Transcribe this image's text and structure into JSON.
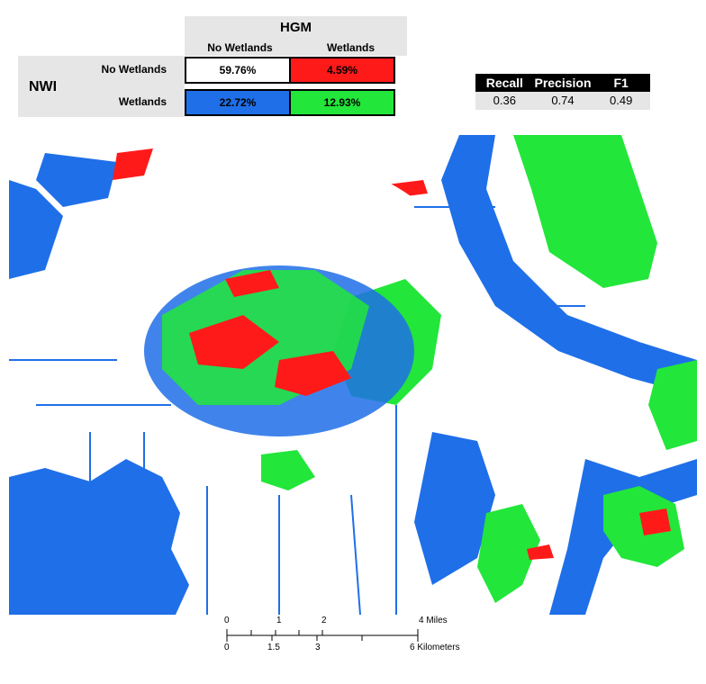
{
  "matrix": {
    "hgm_title": "HGM",
    "nwi_title": "NWI",
    "col_labels": [
      "No Wetlands",
      "Wetlands"
    ],
    "row_labels": [
      "No Wetlands",
      "Wetlands"
    ],
    "cells": {
      "tn": "59.76%",
      "fp": "4.59%",
      "fn": "22.72%",
      "tp": "12.93%"
    },
    "colors": {
      "tn": "#ffffff",
      "fp": "#ff1a1a",
      "fn": "#1f6fe8",
      "tp": "#22e63a"
    }
  },
  "metrics": {
    "headers": [
      "Recall",
      "Precision",
      "F1"
    ],
    "values": [
      "0.36",
      "0.74",
      "0.49"
    ]
  },
  "scale_bar": {
    "miles_ticks": [
      "0",
      "1",
      "2",
      "4 Miles"
    ],
    "km_ticks": [
      "0",
      "1.5",
      "3",
      "6 Kilometers"
    ]
  }
}
